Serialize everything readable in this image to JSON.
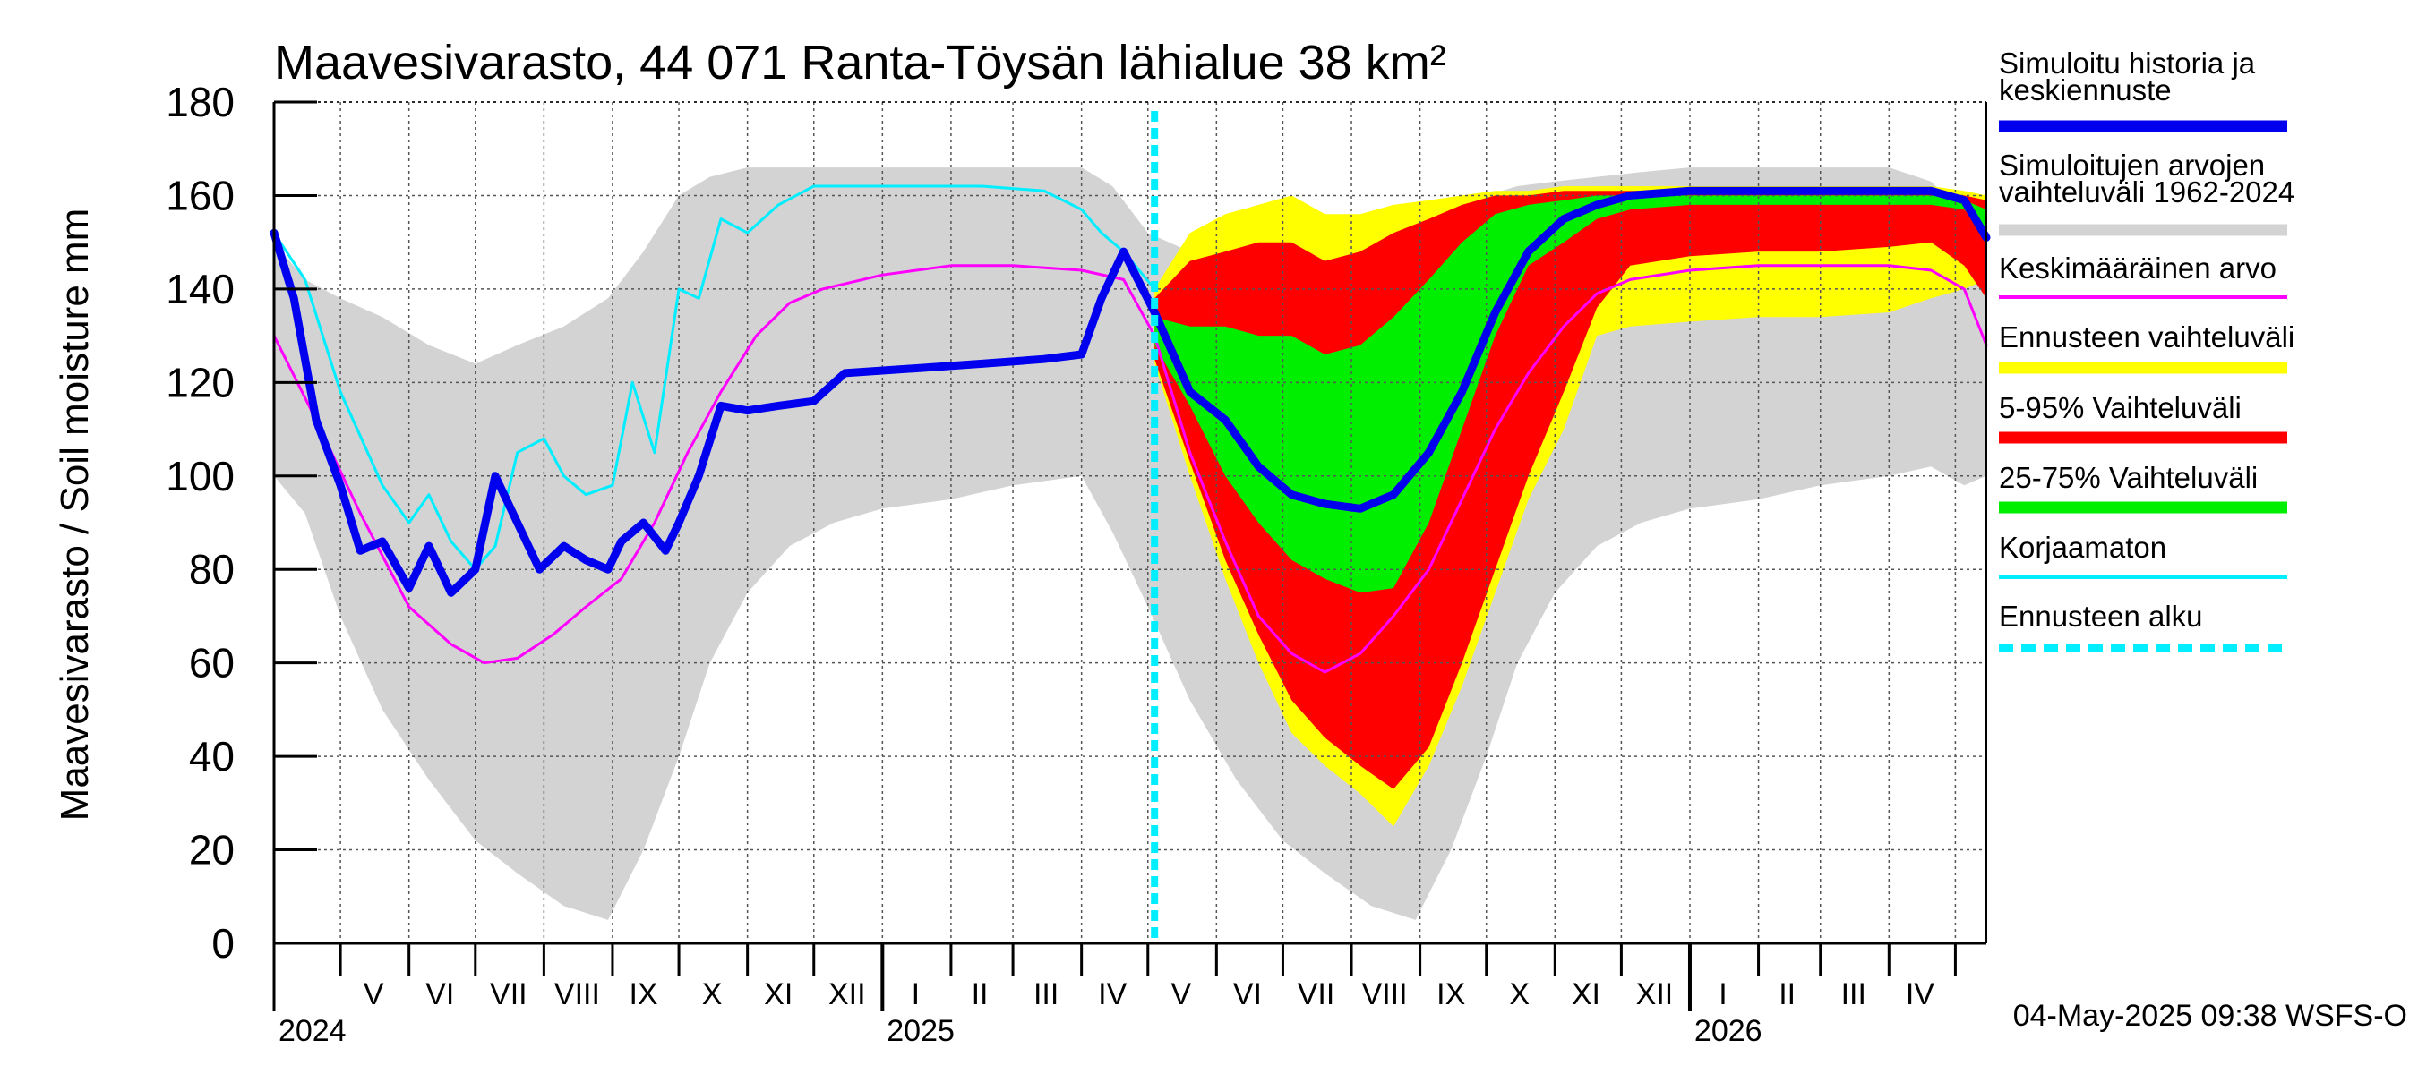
{
  "chart_data": {
    "type": "area",
    "title": "Maavesivarasto, 44 071 Ranta-Töysän lähialue 38 km²",
    "ylabel": "Maavesivarasto / Soil moisture   mm",
    "xlabel": "",
    "ylim": [
      0,
      180
    ],
    "y_ticks": [
      "0",
      "20",
      "40",
      "60",
      "80",
      "100",
      "120",
      "140",
      "160",
      "180"
    ],
    "x_range": [
      "2024-04-01",
      "2026-05-15"
    ],
    "forecast_start": "2025-05-04",
    "grid": true,
    "legend_position": "right",
    "month_labels": [
      {
        "label": "V",
        "date": "2024-05-16"
      },
      {
        "label": "VI",
        "date": "2024-06-15"
      },
      {
        "label": "VII",
        "date": "2024-07-16"
      },
      {
        "label": "VIII",
        "date": "2024-08-16"
      },
      {
        "label": "IX",
        "date": "2024-09-15"
      },
      {
        "label": "X",
        "date": "2024-10-16"
      },
      {
        "label": "XI",
        "date": "2024-11-15"
      },
      {
        "label": "XII",
        "date": "2024-12-16"
      },
      {
        "label": "I",
        "date": "2025-01-16"
      },
      {
        "label": "II",
        "date": "2025-02-14"
      },
      {
        "label": "III",
        "date": "2025-03-16"
      },
      {
        "label": "IV",
        "date": "2025-04-15"
      },
      {
        "label": "V",
        "date": "2025-05-16"
      },
      {
        "label": "VI",
        "date": "2025-06-15"
      },
      {
        "label": "VII",
        "date": "2025-07-16"
      },
      {
        "label": "VIII",
        "date": "2025-08-16"
      },
      {
        "label": "IX",
        "date": "2025-09-15"
      },
      {
        "label": "X",
        "date": "2025-10-16"
      },
      {
        "label": "XI",
        "date": "2025-11-15"
      },
      {
        "label": "XII",
        "date": "2025-12-16"
      },
      {
        "label": "I",
        "date": "2026-01-16"
      },
      {
        "label": "II",
        "date": "2026-02-14"
      },
      {
        "label": "III",
        "date": "2026-03-16"
      },
      {
        "label": "IV",
        "date": "2026-04-15"
      }
    ],
    "year_labels": [
      {
        "label": "2024",
        "date": "2024-04-03"
      },
      {
        "label": "2025",
        "date": "2025-01-03"
      },
      {
        "label": "2026",
        "date": "2026-01-03"
      }
    ],
    "timestamp": "04-May-2025 09:38 WSFS-O",
    "colors": {
      "history": "#0000ee",
      "range": "#d3d3d3",
      "mean": "#ff00ff",
      "forecast_range": "#ffff00",
      "p5_95": "#ff0000",
      "p25_75": "#00ee00",
      "uncorrected": "#00eeff",
      "forecast_start": "#00eeff"
    },
    "series": [
      {
        "name": "Simuloitujen arvojen vaihteluväli 1962-2024",
        "kind": "band",
        "color": "#d3d3d3",
        "x": [
          "2024-04-01",
          "2024-04-15",
          "2024-05-01",
          "2024-05-20",
          "2024-06-10",
          "2024-07-01",
          "2024-07-20",
          "2024-08-10",
          "2024-08-30",
          "2024-09-15",
          "2024-10-01",
          "2024-10-15",
          "2024-11-01",
          "2024-11-20",
          "2024-12-10",
          "2025-01-01",
          "2025-02-01",
          "2025-03-01",
          "2025-04-01",
          "2025-04-15",
          "2025-05-01",
          "2025-05-20",
          "2025-06-10",
          "2025-07-01",
          "2025-07-20",
          "2025-08-10",
          "2025-08-30",
          "2025-09-15",
          "2025-10-01",
          "2025-10-15",
          "2025-11-01",
          "2025-11-20",
          "2025-12-10",
          "2026-01-01",
          "2026-02-01",
          "2026-03-01",
          "2026-04-01",
          "2026-04-20",
          "2026-05-05",
          "2026-05-15"
        ],
        "low": [
          100,
          92,
          70,
          50,
          35,
          22,
          15,
          8,
          5,
          20,
          40,
          60,
          75,
          85,
          90,
          93,
          95,
          98,
          100,
          88,
          72,
          52,
          35,
          22,
          15,
          8,
          5,
          20,
          40,
          60,
          75,
          85,
          90,
          93,
          95,
          98,
          100,
          102,
          98,
          100
        ],
        "high": [
          150,
          142,
          138,
          134,
          128,
          124,
          128,
          132,
          138,
          148,
          160,
          164,
          166,
          166,
          166,
          166,
          166,
          166,
          166,
          162,
          152,
          148,
          144,
          148,
          152,
          154,
          156,
          158,
          160,
          162,
          163,
          164,
          165,
          166,
          166,
          166,
          166,
          163,
          156,
          152
        ]
      },
      {
        "name": "Ennusteen vaihteluväli",
        "kind": "band",
        "color": "#ffff00",
        "x": [
          "2025-05-04",
          "2025-05-20",
          "2025-06-05",
          "2025-06-20",
          "2025-07-05",
          "2025-07-20",
          "2025-08-05",
          "2025-08-20",
          "2025-09-05",
          "2025-09-20",
          "2025-10-05",
          "2025-10-20",
          "2025-11-05",
          "2025-11-20",
          "2025-12-05",
          "2026-01-01",
          "2026-02-01",
          "2026-03-01",
          "2026-04-01",
          "2026-04-20",
          "2026-05-05",
          "2026-05-15"
        ],
        "low": [
          124,
          100,
          78,
          60,
          45,
          38,
          32,
          25,
          38,
          55,
          75,
          95,
          110,
          130,
          132,
          133,
          134,
          134,
          135,
          138,
          140,
          142
        ],
        "high": [
          140,
          152,
          156,
          158,
          160,
          156,
          156,
          158,
          159,
          160,
          161,
          161,
          162,
          162,
          162,
          162,
          162,
          162,
          162,
          162,
          161,
          160
        ]
      },
      {
        "name": "5-95% Vaihteluväli",
        "kind": "band",
        "color": "#ff0000",
        "x": [
          "2025-05-04",
          "2025-05-20",
          "2025-06-05",
          "2025-06-20",
          "2025-07-05",
          "2025-07-20",
          "2025-08-05",
          "2025-08-20",
          "2025-09-05",
          "2025-09-20",
          "2025-10-05",
          "2025-10-20",
          "2025-11-05",
          "2025-11-20",
          "2025-12-05",
          "2026-01-01",
          "2026-02-01",
          "2026-03-01",
          "2026-04-01",
          "2026-04-20",
          "2026-05-05",
          "2026-05-15"
        ],
        "low": [
          125,
          103,
          82,
          66,
          52,
          44,
          38,
          33,
          42,
          60,
          80,
          100,
          118,
          136,
          145,
          147,
          148,
          148,
          149,
          150,
          145,
          138
        ],
        "high": [
          138,
          146,
          148,
          150,
          150,
          146,
          148,
          152,
          155,
          158,
          160,
          160,
          161,
          161,
          161,
          161,
          161,
          161,
          161,
          161,
          160,
          159
        ]
      },
      {
        "name": "25-75% Vaihteluväli",
        "kind": "band",
        "color": "#00ee00",
        "x": [
          "2025-05-04",
          "2025-05-20",
          "2025-06-05",
          "2025-06-20",
          "2025-07-05",
          "2025-07-20",
          "2025-08-05",
          "2025-08-20",
          "2025-09-05",
          "2025-09-20",
          "2025-10-05",
          "2025-10-20",
          "2025-11-05",
          "2025-11-20",
          "2025-12-05",
          "2026-01-01",
          "2026-02-01",
          "2026-03-01",
          "2026-04-01",
          "2026-04-20",
          "2026-05-05",
          "2026-05-15"
        ],
        "low": [
          128,
          115,
          100,
          90,
          82,
          78,
          75,
          76,
          90,
          110,
          130,
          145,
          150,
          155,
          157,
          158,
          158,
          158,
          158,
          158,
          157,
          152
        ],
        "high": [
          134,
          132,
          132,
          130,
          130,
          126,
          128,
          134,
          142,
          150,
          156,
          158,
          159,
          160,
          160,
          160,
          160,
          160,
          160,
          160,
          159,
          157
        ]
      },
      {
        "name": "Keskimääräinen arvo",
        "kind": "line",
        "color": "#ff00ff",
        "width": 3,
        "x": [
          "2024-04-01",
          "2024-04-20",
          "2024-05-10",
          "2024-06-01",
          "2024-06-20",
          "2024-07-05",
          "2024-07-20",
          "2024-08-05",
          "2024-08-20",
          "2024-09-05",
          "2024-09-20",
          "2024-10-05",
          "2024-10-20",
          "2024-11-05",
          "2024-11-20",
          "2024-12-05",
          "2025-01-01",
          "2025-02-01",
          "2025-03-01",
          "2025-04-01",
          "2025-04-20",
          "2025-05-04",
          "2025-05-20",
          "2025-06-05",
          "2025-06-20",
          "2025-07-05",
          "2025-07-20",
          "2025-08-05",
          "2025-08-20",
          "2025-09-05",
          "2025-09-20",
          "2025-10-05",
          "2025-10-20",
          "2025-11-05",
          "2025-11-20",
          "2025-12-05",
          "2026-01-01",
          "2026-02-01",
          "2026-03-01",
          "2026-04-01",
          "2026-04-20",
          "2026-05-05",
          "2026-05-15"
        ],
        "y": [
          130,
          112,
          92,
          72,
          64,
          60,
          61,
          66,
          72,
          78,
          90,
          105,
          118,
          130,
          137,
          140,
          143,
          145,
          145,
          144,
          142,
          130,
          105,
          86,
          70,
          62,
          58,
          62,
          70,
          80,
          95,
          110,
          122,
          132,
          139,
          142,
          144,
          145,
          145,
          145,
          144,
          140,
          128
        ]
      },
      {
        "name": "Korjaamaton",
        "kind": "line",
        "color": "#00eeff",
        "width": 3,
        "x": [
          "2024-04-01",
          "2024-04-15",
          "2024-05-01",
          "2024-05-20",
          "2024-06-01",
          "2024-06-10",
          "2024-06-20",
          "2024-07-01",
          "2024-07-10",
          "2024-07-20",
          "2024-08-01",
          "2024-08-10",
          "2024-08-20",
          "2024-09-01",
          "2024-09-10",
          "2024-09-20",
          "2024-10-01",
          "2024-10-10",
          "2024-10-20",
          "2024-11-01",
          "2024-11-15",
          "2024-12-01",
          "2024-12-20",
          "2025-01-15",
          "2025-02-15",
          "2025-03-15",
          "2025-04-01",
          "2025-04-10",
          "2025-04-20",
          "2025-05-04"
        ],
        "y": [
          152,
          142,
          118,
          98,
          90,
          96,
          86,
          80,
          85,
          105,
          108,
          100,
          96,
          98,
          120,
          105,
          140,
          138,
          155,
          152,
          158,
          162,
          162,
          162,
          162,
          161,
          157,
          152,
          148,
          140
        ]
      },
      {
        "name": "Simuloitu historia ja keskiennuste",
        "kind": "line",
        "color": "#0000ee",
        "width": 9,
        "x": [
          "2024-04-01",
          "2024-04-10",
          "2024-04-20",
          "2024-05-01",
          "2024-05-10",
          "2024-05-20",
          "2024-06-01",
          "2024-06-10",
          "2024-06-20",
          "2024-07-01",
          "2024-07-10",
          "2024-07-20",
          "2024-07-30",
          "2024-08-10",
          "2024-08-20",
          "2024-08-30",
          "2024-09-05",
          "2024-09-15",
          "2024-09-25",
          "2024-10-01",
          "2024-10-10",
          "2024-10-20",
          "2024-11-01",
          "2024-11-15",
          "2024-12-01",
          "2024-12-15",
          "2025-01-15",
          "2025-02-15",
          "2025-03-15",
          "2025-04-01",
          "2025-04-10",
          "2025-04-20",
          "2025-05-04",
          "2025-05-20",
          "2025-06-05",
          "2025-06-20",
          "2025-07-05",
          "2025-07-20",
          "2025-08-05",
          "2025-08-20",
          "2025-09-05",
          "2025-09-20",
          "2025-10-05",
          "2025-10-20",
          "2025-11-05",
          "2025-11-20",
          "2025-12-05",
          "2026-01-01",
          "2026-02-01",
          "2026-03-01",
          "2026-04-01",
          "2026-04-20",
          "2026-05-05",
          "2026-05-15"
        ],
        "y": [
          152,
          138,
          112,
          98,
          84,
          86,
          76,
          85,
          75,
          80,
          100,
          90,
          80,
          85,
          82,
          80,
          86,
          90,
          84,
          90,
          100,
          115,
          114,
          115,
          116,
          122,
          123,
          124,
          125,
          126,
          138,
          148,
          135,
          118,
          112,
          102,
          96,
          94,
          93,
          96,
          105,
          118,
          135,
          148,
          155,
          158,
          160,
          161,
          161,
          161,
          161,
          161,
          159,
          151
        ]
      }
    ],
    "legend": [
      {
        "label": "Simuloitu historia ja keskiennuste",
        "color": "#0000ee",
        "style": "thick"
      },
      {
        "label": "Simuloitujen arvojen vaihteluväli 1962-2024",
        "color": "#d3d3d3",
        "style": "thick"
      },
      {
        "label": "Keskimääräinen arvo",
        "color": "#ff00ff",
        "style": "thin"
      },
      {
        "label": "Ennusteen vaihteluväli",
        "color": "#ffff00",
        "style": "thick"
      },
      {
        "label": "5-95% Vaihteluväli",
        "color": "#ff0000",
        "style": "thick"
      },
      {
        "label": "25-75% Vaihteluväli",
        "color": "#00ee00",
        "style": "thick"
      },
      {
        "label": "Korjaamaton",
        "color": "#00eeff",
        "style": "thin"
      },
      {
        "label": "Ennusteen alku",
        "color": "#00eeff",
        "style": "dashed"
      }
    ]
  }
}
